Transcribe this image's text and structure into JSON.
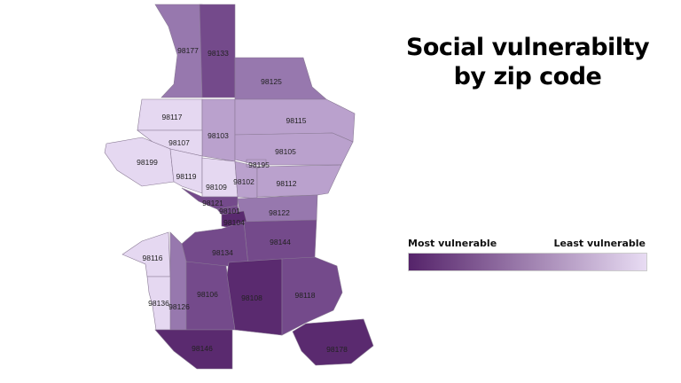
{
  "title_line1": "Social vulnerabilty",
  "title_line2": "by zip code",
  "legend": {
    "most_label": "Most vulnerable",
    "least_label": "Least vulnerable",
    "color_most": "#55236a",
    "color_least": "#e8dcf3"
  },
  "colors": {
    "q1": "#e5d8f1",
    "q2": "#baa1cd",
    "q3": "#9778ae",
    "q4": "#744a8b",
    "q5": "#5a2a6f"
  },
  "zips": [
    {
      "zip": "98177",
      "level": "q3"
    },
    {
      "zip": "98133",
      "level": "q4"
    },
    {
      "zip": "98125",
      "level": "q3"
    },
    {
      "zip": "98117",
      "level": "q1"
    },
    {
      "zip": "98103",
      "level": "q2"
    },
    {
      "zip": "98115",
      "level": "q2"
    },
    {
      "zip": "98107",
      "level": "q1"
    },
    {
      "zip": "98105",
      "level": "q2"
    },
    {
      "zip": "98199",
      "level": "q1"
    },
    {
      "zip": "98195",
      "level": "q2"
    },
    {
      "zip": "98119",
      "level": "q1"
    },
    {
      "zip": "98109",
      "level": "q1"
    },
    {
      "zip": "98102",
      "level": "q2"
    },
    {
      "zip": "98112",
      "level": "q2"
    },
    {
      "zip": "98121",
      "level": "q4"
    },
    {
      "zip": "98101",
      "level": "q4"
    },
    {
      "zip": "98122",
      "level": "q3"
    },
    {
      "zip": "98104",
      "level": "q5"
    },
    {
      "zip": "98144",
      "level": "q4"
    },
    {
      "zip": "98134",
      "level": "q4"
    },
    {
      "zip": "98116",
      "level": "q1"
    },
    {
      "zip": "98126",
      "level": "q3"
    },
    {
      "zip": "98136",
      "level": "q1"
    },
    {
      "zip": "98106",
      "level": "q4"
    },
    {
      "zip": "98108",
      "level": "q5"
    },
    {
      "zip": "98118",
      "level": "q4"
    },
    {
      "zip": "98146",
      "level": "q5"
    },
    {
      "zip": "98178",
      "level": "q5"
    }
  ]
}
